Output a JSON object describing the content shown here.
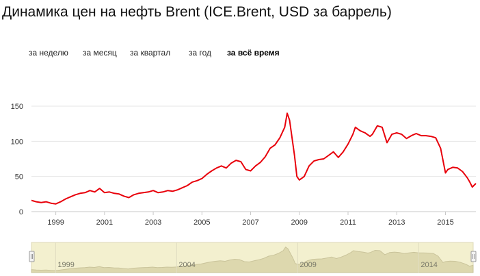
{
  "title": "Динамика цен на нефть Brent (ICE.Brent, USD за баррель)",
  "periods": [
    {
      "label": "за неделю",
      "active": false
    },
    {
      "label": "за месяц",
      "active": false
    },
    {
      "label": "за квартал",
      "active": false
    },
    {
      "label": "за год",
      "active": false
    },
    {
      "label": "за всё время",
      "active": true
    }
  ],
  "colors": {
    "line": "#e8000b",
    "navigator_fill": "#f3f0cf",
    "navigator_area": "#ddd8ae",
    "grid": "#e6e6e6"
  },
  "chart_data": {
    "type": "line",
    "title": "Динамика цен на нефть Brent (ICE.Brent, USD за баррель)",
    "xlabel": "",
    "ylabel": "",
    "xlim": [
      1998.0,
      2016.25
    ],
    "ylim": [
      0,
      150
    ],
    "y_ticks": [
      0,
      50,
      100,
      150
    ],
    "x_ticks": [
      1999,
      2001,
      2003,
      2005,
      2007,
      2009,
      2011,
      2013,
      2015
    ],
    "x_tick_labels": [
      "1999",
      "2001",
      "2003",
      "2005",
      "2007",
      "2009",
      "2011",
      "2013",
      "2015"
    ],
    "grid": true,
    "legend": "none",
    "series": [
      {
        "x": [
          1998.0,
          1998.2,
          1998.4,
          1998.6,
          1998.8,
          1999.0,
          1999.2,
          1999.4,
          1999.6,
          1999.8,
          2000.0,
          2000.2,
          2000.4,
          2000.6,
          2000.8,
          2001.0,
          2001.2,
          2001.4,
          2001.6,
          2001.8,
          2002.0,
          2002.2,
          2002.4,
          2002.6,
          2002.8,
          2003.0,
          2003.2,
          2003.4,
          2003.6,
          2003.8,
          2004.0,
          2004.2,
          2004.4,
          2004.6,
          2004.8,
          2005.0,
          2005.2,
          2005.4,
          2005.6,
          2005.8,
          2006.0,
          2006.2,
          2006.4,
          2006.6,
          2006.8,
          2007.0,
          2007.2,
          2007.4,
          2007.6,
          2007.8,
          2008.0,
          2008.2,
          2008.4,
          2008.5,
          2008.6,
          2008.8,
          2008.9,
          2009.0,
          2009.2,
          2009.4,
          2009.6,
          2009.8,
          2010.0,
          2010.2,
          2010.4,
          2010.6,
          2010.8,
          2011.0,
          2011.2,
          2011.3,
          2011.5,
          2011.7,
          2011.9,
          2012.0,
          2012.2,
          2012.4,
          2012.6,
          2012.8,
          2013.0,
          2013.2,
          2013.4,
          2013.6,
          2013.8,
          2014.0,
          2014.2,
          2014.4,
          2014.6,
          2014.8,
          2015.0,
          2015.1,
          2015.3,
          2015.5,
          2015.7,
          2015.9,
          2016.0,
          2016.1,
          2016.25
        ],
        "y": [
          16,
          14,
          13,
          14,
          12,
          11,
          14,
          18,
          21,
          24,
          26,
          27,
          30,
          28,
          33,
          27,
          28,
          26,
          25,
          22,
          20,
          24,
          26,
          27,
          28,
          30,
          27,
          28,
          30,
          29,
          31,
          34,
          37,
          42,
          44,
          47,
          53,
          58,
          62,
          65,
          62,
          69,
          73,
          71,
          60,
          58,
          65,
          70,
          78,
          90,
          95,
          105,
          120,
          140,
          130,
          80,
          50,
          45,
          50,
          65,
          72,
          74,
          75,
          80,
          85,
          77,
          85,
          96,
          110,
          120,
          115,
          112,
          107,
          110,
          122,
          120,
          98,
          110,
          112,
          110,
          104,
          108,
          111,
          108,
          108,
          107,
          105,
          90,
          55,
          60,
          63,
          62,
          57,
          48,
          42,
          35,
          40
        ]
      }
    ]
  }
}
